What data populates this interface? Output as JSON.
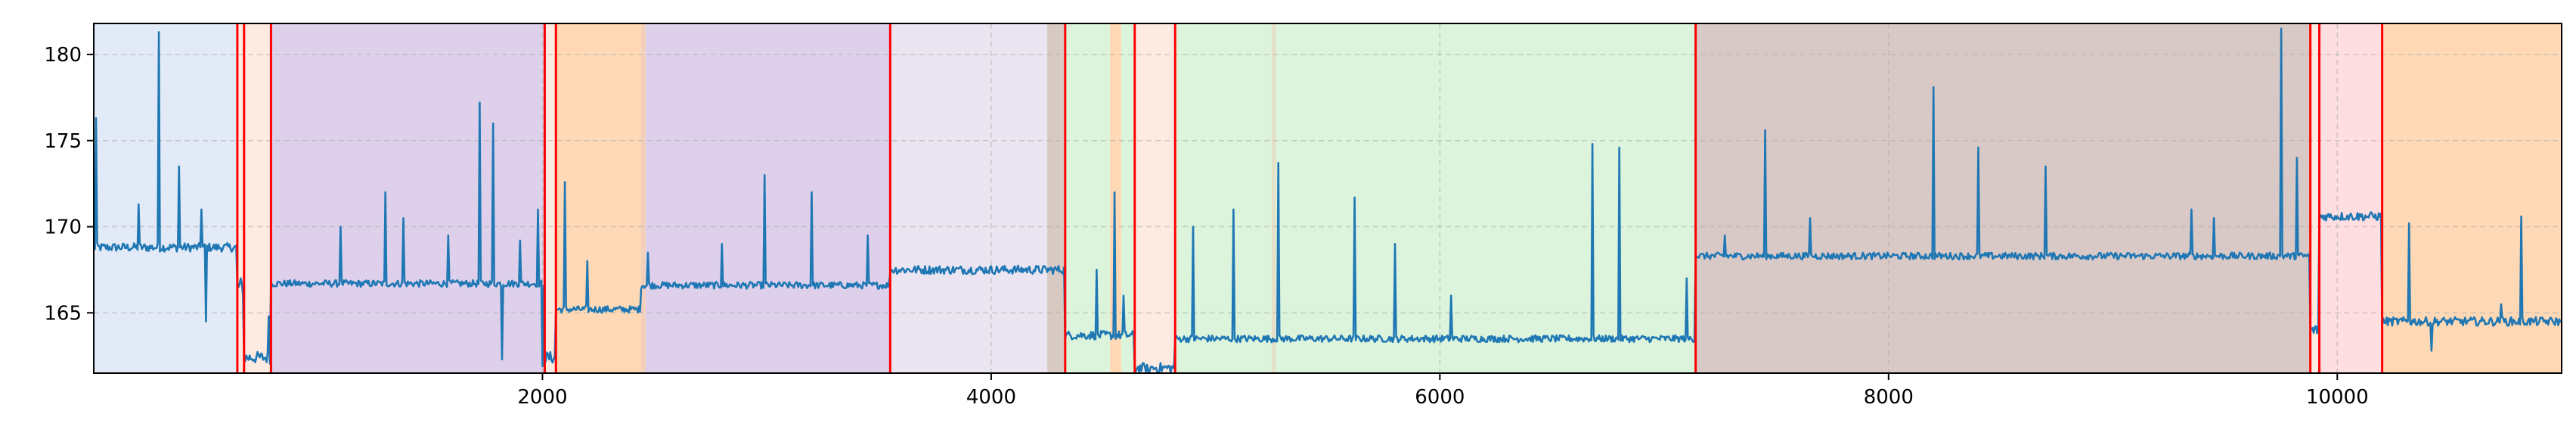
{
  "chart_data": {
    "type": "line",
    "title": "",
    "xlabel": "",
    "ylabel": "",
    "xlim": [
      0,
      11000
    ],
    "ylim": [
      161.5,
      181.8
    ],
    "grid": true,
    "x_ticks": [
      2000,
      4000,
      6000,
      8000,
      10000
    ],
    "x_tick_labels": [
      "2000",
      "4000",
      "6000",
      "8000",
      "10000"
    ],
    "y_ticks": [
      165,
      170,
      175,
      180
    ],
    "y_tick_labels": [
      "165",
      "170",
      "175",
      "180"
    ],
    "colors": {
      "line": "#1f77b4",
      "changepoint": "#ff0000",
      "grid": "#b0b0b0"
    },
    "regions": [
      {
        "start": 0,
        "end": 640,
        "color": "#dce6f5"
      },
      {
        "start": 640,
        "end": 670,
        "color": "#fde8dc"
      },
      {
        "start": 670,
        "end": 790,
        "color": "#fde8dc"
      },
      {
        "start": 790,
        "end": 2010,
        "color": "#d8c8e6"
      },
      {
        "start": 2010,
        "end": 2060,
        "color": "#fde8dc"
      },
      {
        "start": 2060,
        "end": 2440,
        "color": "#ffd2a8"
      },
      {
        "start": 2440,
        "end": 2460,
        "color": "#f0c8b0"
      },
      {
        "start": 2460,
        "end": 3550,
        "color": "#d8c8e6"
      },
      {
        "start": 3550,
        "end": 4250,
        "color": "#e6e0ee"
      },
      {
        "start": 4250,
        "end": 4330,
        "color": "#d2bfb8"
      },
      {
        "start": 4330,
        "end": 4530,
        "color": "#d6f2d6"
      },
      {
        "start": 4530,
        "end": 4580,
        "color": "#ffd2a8"
      },
      {
        "start": 4580,
        "end": 4640,
        "color": "#d6f2d6"
      },
      {
        "start": 4640,
        "end": 4820,
        "color": "#fde8dc"
      },
      {
        "start": 4820,
        "end": 5250,
        "color": "#d6f2d6"
      },
      {
        "start": 5250,
        "end": 5270,
        "color": "#e0dcc0"
      },
      {
        "start": 5270,
        "end": 7140,
        "color": "#d6f2d6"
      },
      {
        "start": 7140,
        "end": 9880,
        "color": "#d2bfbc"
      },
      {
        "start": 9880,
        "end": 9920,
        "color": "#fde8dc"
      },
      {
        "start": 9920,
        "end": 10200,
        "color": "#ffd8dc"
      },
      {
        "start": 10200,
        "end": 11000,
        "color": "#ffd2a8"
      }
    ],
    "changepoints": [
      640,
      670,
      790,
      2010,
      2060,
      3550,
      4330,
      4640,
      4820,
      7140,
      9880,
      9920,
      10200
    ],
    "segments": [
      {
        "x0": 0,
        "x1": 640,
        "level": 168.8,
        "noise": 0.25
      },
      {
        "x0": 640,
        "x1": 670,
        "level": 166.5,
        "noise": 0.6
      },
      {
        "x0": 670,
        "x1": 790,
        "level": 162.4,
        "noise": 0.35
      },
      {
        "x0": 790,
        "x1": 2010,
        "level": 166.7,
        "noise": 0.2
      },
      {
        "x0": 2010,
        "x1": 2060,
        "level": 162.4,
        "noise": 0.35
      },
      {
        "x0": 2060,
        "x1": 2440,
        "level": 165.2,
        "noise": 0.2
      },
      {
        "x0": 2440,
        "x1": 3550,
        "level": 166.6,
        "noise": 0.2
      },
      {
        "x0": 3550,
        "x1": 4330,
        "level": 167.5,
        "noise": 0.25
      },
      {
        "x0": 4330,
        "x1": 4640,
        "level": 163.7,
        "noise": 0.25
      },
      {
        "x0": 4640,
        "x1": 4820,
        "level": 161.8,
        "noise": 0.3
      },
      {
        "x0": 4820,
        "x1": 7140,
        "level": 163.5,
        "noise": 0.2
      },
      {
        "x0": 7140,
        "x1": 9880,
        "level": 168.3,
        "noise": 0.2
      },
      {
        "x0": 9880,
        "x1": 9920,
        "level": 164.0,
        "noise": 0.3
      },
      {
        "x0": 9920,
        "x1": 10200,
        "level": 170.6,
        "noise": 0.25
      },
      {
        "x0": 10200,
        "x1": 11000,
        "level": 164.5,
        "noise": 0.25
      }
    ],
    "spikes": [
      {
        "x": 12,
        "y": 176.3
      },
      {
        "x": 290,
        "y": 181.3
      },
      {
        "x": 200,
        "y": 171.3
      },
      {
        "x": 380,
        "y": 173.5
      },
      {
        "x": 480,
        "y": 171.0
      },
      {
        "x": 780,
        "y": 164.8
      },
      {
        "x": 1100,
        "y": 170.0
      },
      {
        "x": 1300,
        "y": 172.0
      },
      {
        "x": 1380,
        "y": 170.5
      },
      {
        "x": 1580,
        "y": 169.5
      },
      {
        "x": 1720,
        "y": 177.2
      },
      {
        "x": 1780,
        "y": 176.0
      },
      {
        "x": 1900,
        "y": 169.2
      },
      {
        "x": 1980,
        "y": 171.0
      },
      {
        "x": 2100,
        "y": 172.6
      },
      {
        "x": 2200,
        "y": 168.0
      },
      {
        "x": 2470,
        "y": 168.5
      },
      {
        "x": 2800,
        "y": 169.0
      },
      {
        "x": 2990,
        "y": 173.0
      },
      {
        "x": 3200,
        "y": 172.0
      },
      {
        "x": 3450,
        "y": 169.5
      },
      {
        "x": 4470,
        "y": 167.5
      },
      {
        "x": 4550,
        "y": 172.0
      },
      {
        "x": 4590,
        "y": 166.0
      },
      {
        "x": 4900,
        "y": 170.0
      },
      {
        "x": 5080,
        "y": 171.0
      },
      {
        "x": 5280,
        "y": 173.7
      },
      {
        "x": 5620,
        "y": 171.7
      },
      {
        "x": 5800,
        "y": 169.0
      },
      {
        "x": 6050,
        "y": 166.0
      },
      {
        "x": 6680,
        "y": 174.8
      },
      {
        "x": 6800,
        "y": 174.6
      },
      {
        "x": 7100,
        "y": 167.0
      },
      {
        "x": 7270,
        "y": 169.5
      },
      {
        "x": 7450,
        "y": 175.6
      },
      {
        "x": 7650,
        "y": 170.5
      },
      {
        "x": 8200,
        "y": 178.1
      },
      {
        "x": 8400,
        "y": 174.6
      },
      {
        "x": 8700,
        "y": 173.5
      },
      {
        "x": 9350,
        "y": 171.0
      },
      {
        "x": 9450,
        "y": 170.5
      },
      {
        "x": 9750,
        "y": 181.5
      },
      {
        "x": 9820,
        "y": 174.0
      },
      {
        "x": 10320,
        "y": 170.2
      },
      {
        "x": 10820,
        "y": 170.6
      },
      {
        "x": 10730,
        "y": 165.5
      }
    ],
    "dips": [
      {
        "x": 500,
        "y": 164.5
      },
      {
        "x": 1820,
        "y": 162.3
      },
      {
        "x": 2000,
        "y": 161.9
      },
      {
        "x": 10420,
        "y": 162.8
      },
      {
        "x": 4700,
        "y": 161.6
      }
    ]
  }
}
